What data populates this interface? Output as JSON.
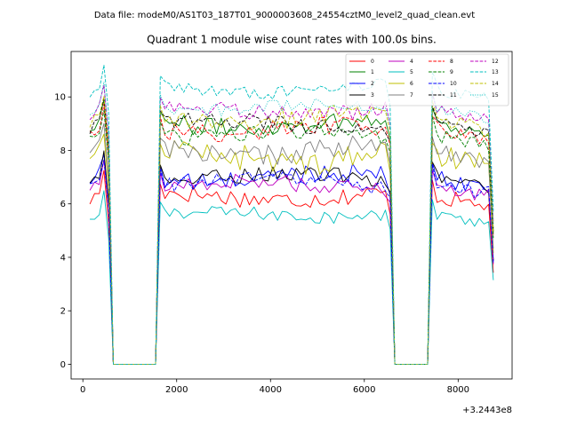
{
  "chart_data": {
    "type": "line",
    "suptitle": "Data file: modeM0/AS1T03_187T01_9000003608_24554cztM0_level2_quad_clean.evt",
    "title": "Quadrant 1 module wise count rates with 100.0s bins.",
    "xlabel": "",
    "ylabel": "",
    "x_offset_label": "+3.2443e8",
    "xlim": [
      -250,
      9150
    ],
    "ylim": [
      -0.55,
      11.7
    ],
    "xticks": [
      0,
      2000,
      4000,
      6000,
      8000
    ],
    "xtick_labels": [
      "0",
      "2000",
      "4000",
      "6000",
      "8000"
    ],
    "yticks": [
      0,
      2,
      4,
      6,
      8,
      10
    ],
    "ytick_labels": [
      "0",
      "2",
      "4",
      "6",
      "8",
      "10"
    ],
    "legend_position": "top-right",
    "bin_seconds": 100.0,
    "segments": [
      [
        150,
        450
      ],
      [
        1650,
        6550
      ],
      [
        7450,
        8650
      ]
    ],
    "zero_segments": [
      [
        650,
        1550
      ],
      [
        6650,
        7350
      ]
    ],
    "series": [
      {
        "name": "0",
        "color": "#ff0000",
        "dash": "solid",
        "level": 6.3,
        "noise": 0.35,
        "amp": 0.15
      },
      {
        "name": "1",
        "color": "#008000",
        "dash": "solid",
        "level": 9.0,
        "noise": 0.35,
        "amp": 0.15
      },
      {
        "name": "2",
        "color": "#0000ff",
        "dash": "solid",
        "level": 7.0,
        "noise": 0.35,
        "amp": 0.2
      },
      {
        "name": "3",
        "color": "#000000",
        "dash": "solid",
        "level": 7.0,
        "noise": 0.3,
        "amp": 0.15
      },
      {
        "name": "4",
        "color": "#bf00bf",
        "dash": "solid",
        "level": 6.7,
        "noise": 0.3,
        "amp": 0.15
      },
      {
        "name": "5",
        "color": "#00bfbf",
        "dash": "solid",
        "level": 5.6,
        "noise": 0.25,
        "amp": 0.1
      },
      {
        "name": "6",
        "color": "#bfbf00",
        "dash": "solid",
        "level": 7.8,
        "noise": 0.5,
        "amp": 0.25
      },
      {
        "name": "7",
        "color": "#808080",
        "dash": "solid",
        "level": 8.0,
        "noise": 0.4,
        "amp": 0.2
      },
      {
        "name": "8",
        "color": "#ff0000",
        "dash": "dashed",
        "level": 8.8,
        "noise": 0.35,
        "amp": 0.15
      },
      {
        "name": "9",
        "color": "#008000",
        "dash": "dashed",
        "level": 8.6,
        "noise": 0.3,
        "amp": 0.15
      },
      {
        "name": "10",
        "color": "#0000ff",
        "dash": "dashed",
        "level": 6.8,
        "noise": 0.3,
        "amp": 0.15
      },
      {
        "name": "11",
        "color": "#000000",
        "dash": "dashed",
        "level": 9.0,
        "noise": 0.3,
        "amp": 0.15
      },
      {
        "name": "12",
        "color": "#bf00bf",
        "dash": "dashed",
        "level": 9.5,
        "noise": 0.3,
        "amp": 0.15
      },
      {
        "name": "13",
        "color": "#00bfbf",
        "dash": "dashed",
        "level": 10.3,
        "noise": 0.25,
        "amp": 0.15
      },
      {
        "name": "14",
        "color": "#bfbf00",
        "dash": "dashed",
        "level": 9.2,
        "noise": 0.4,
        "amp": 0.2
      },
      {
        "name": "15",
        "color": "#00bfbf",
        "dash": "dotted",
        "level": 9.6,
        "noise": 0.25,
        "amp": 0.15
      }
    ]
  }
}
